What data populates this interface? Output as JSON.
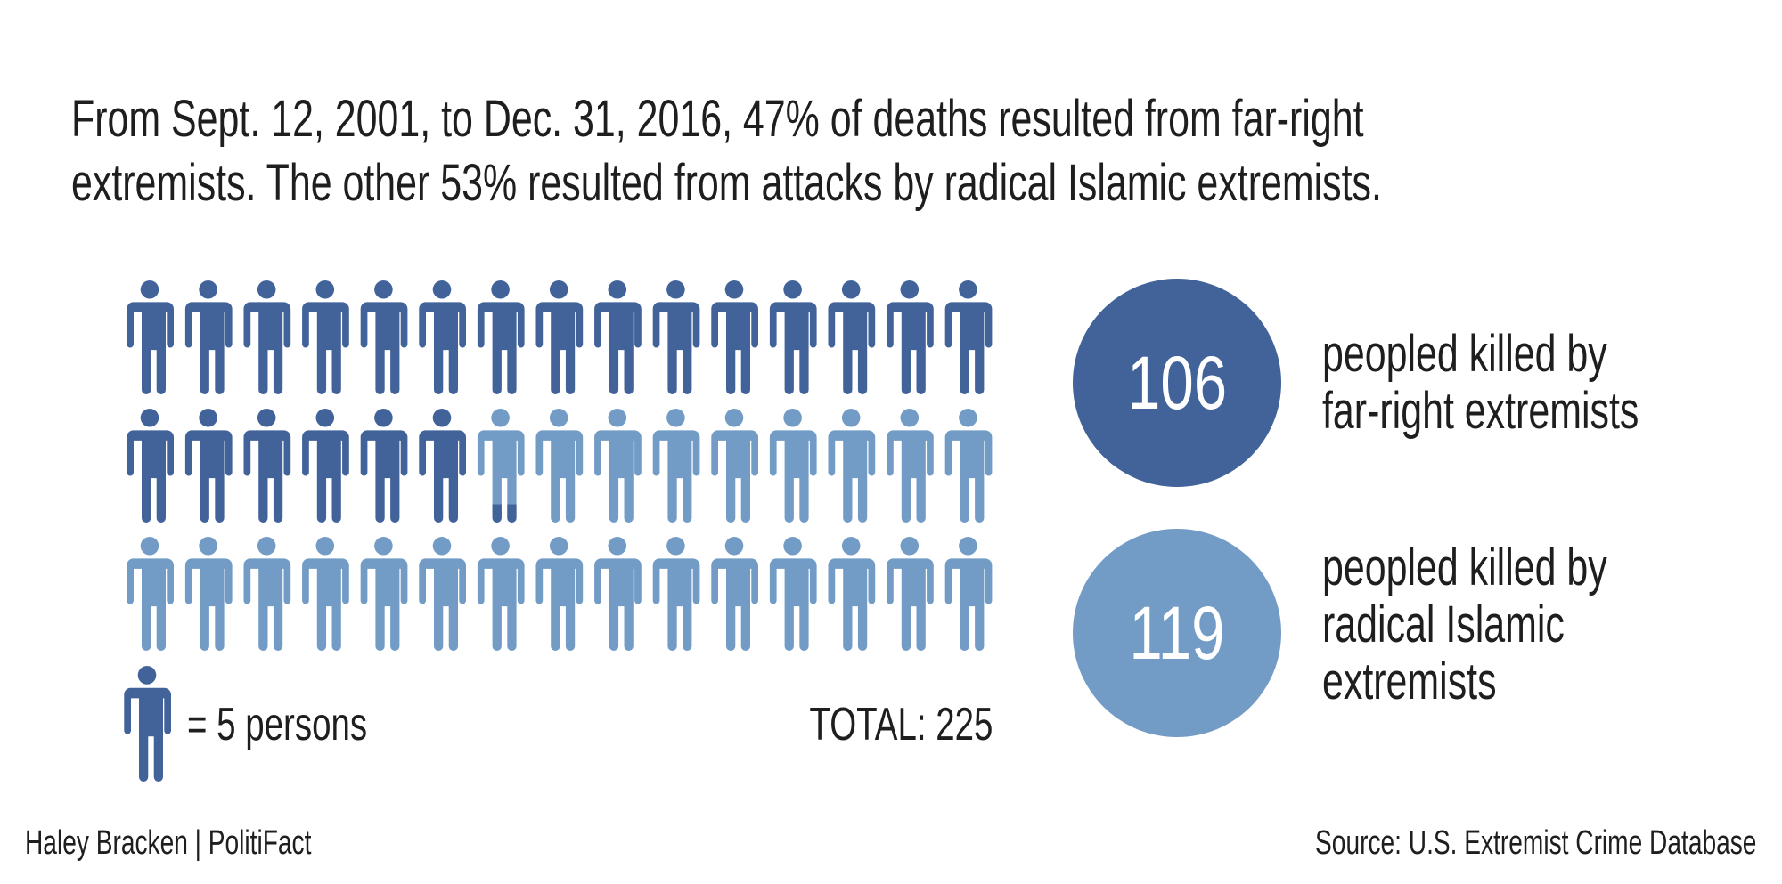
{
  "title_lines": [
    "From Sept. 12, 2001, to Dec. 31, 2016, 47% of deaths resulted from far-right",
    "extremists. The other 53% resulted from attacks by radical Islamic extremists."
  ],
  "chart_data": {
    "type": "pictogram",
    "unit_value": 5,
    "icons_per_row": 15,
    "series": [
      {
        "name": "far-right extremists",
        "value": 106,
        "color": "#41639a"
      },
      {
        "name": "radical Islamic extremists",
        "value": 119,
        "color": "#729cc6"
      }
    ],
    "total": 225
  },
  "legend": {
    "text": "=  5 persons",
    "icon": "person-icon"
  },
  "total_label": "TOTAL: 225",
  "stats": [
    {
      "value": "106",
      "label_lines": [
        "peopled killed by",
        "far-right extremists"
      ],
      "color": "#41639a"
    },
    {
      "value": "119",
      "label_lines": [
        "peopled killed by",
        "radical Islamic",
        "extremists"
      ],
      "color": "#729cc6"
    }
  ],
  "credit": "Haley Bracken | PolitiFact",
  "source": "Source: U.S. Extremist Crime Database"
}
